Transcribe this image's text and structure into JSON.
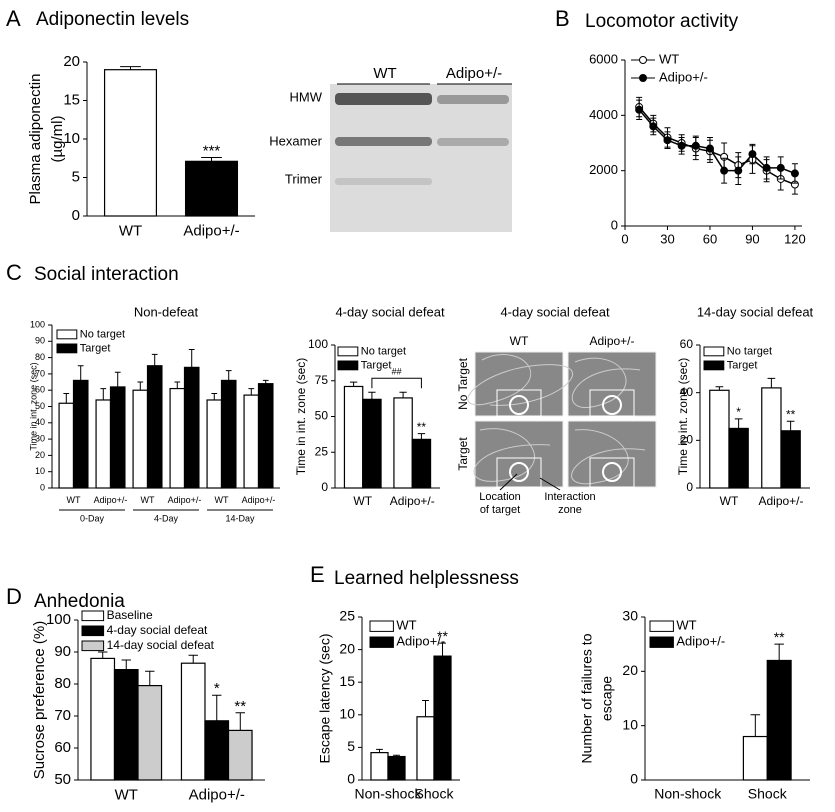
{
  "panels": [
    {
      "letter": "A",
      "title": "Adiponectin levels"
    },
    {
      "letter": "B",
      "title": "Locomotor activity"
    },
    {
      "letter": "C",
      "title": "Social interaction"
    },
    {
      "letter": "D",
      "title": "Anhedonia"
    },
    {
      "letter": "E",
      "title": "Learned helplessness"
    }
  ],
  "blot": {
    "groups": [
      "WT",
      "Adipo+/-"
    ],
    "bands": [
      "HMW",
      "Hexamer",
      "Trimer"
    ]
  },
  "tracks": {
    "title": "4-day social defeat",
    "columns": [
      "WT",
      "Adipo+/-"
    ],
    "rows": [
      "No Target",
      "Target"
    ],
    "location_label": [
      "Location",
      "of target"
    ],
    "zone_label": [
      "Interaction",
      "zone"
    ]
  },
  "chart_data": [
    {
      "type": "bar",
      "y_label": [
        "Plasma adiponectin",
        "(µg/ml)"
      ],
      "categories": [
        "WT",
        "Adipo+/-"
      ],
      "values": [
        19,
        7.1
      ],
      "errors": [
        0.4,
        0.5
      ],
      "colors": [
        "#ffffff",
        "#000000"
      ],
      "ylim": [
        0,
        20
      ],
      "yticks": [
        0,
        5,
        10,
        15,
        20
      ],
      "annotations": [
        {
          "text": "***",
          "index": 1
        }
      ]
    },
    {
      "type": "line",
      "x": [
        10,
        20,
        30,
        40,
        50,
        60,
        70,
        80,
        90,
        100,
        110,
        120
      ],
      "xlim": [
        0,
        125
      ],
      "xticks": [
        0,
        30,
        60,
        90,
        120
      ],
      "ylim": [
        0,
        6000
      ],
      "yticks": [
        0,
        2000,
        4000,
        6000
      ],
      "legend": "upper right",
      "series": [
        {
          "name": "WT",
          "color": "#ffffff",
          "values": [
            4300,
            3700,
            3200,
            3000,
            2800,
            2700,
            2500,
            2200,
            2400,
            2000,
            1700,
            1500
          ],
          "errors": [
            350,
            300,
            350,
            300,
            400,
            400,
            500,
            450,
            500,
            400,
            400,
            350
          ]
        },
        {
          "name": "Adipo+/-",
          "color": "#000000",
          "values": [
            4200,
            3600,
            3100,
            2900,
            2900,
            2800,
            2000,
            2000,
            2600,
            2100,
            2100,
            1900
          ],
          "errors": [
            350,
            300,
            300,
            300,
            350,
            400,
            450,
            500,
            350,
            400,
            400,
            350
          ]
        }
      ]
    },
    {
      "type": "bar",
      "title": "Non-defeat",
      "y_label": [
        "Time in int. zone (sec)"
      ],
      "categories": [
        "WT",
        "Adipo+/-",
        "WT",
        "Adipo+/-",
        "WT",
        "Adipo+/-"
      ],
      "group_labels": [
        "0-Day",
        "4-Day",
        "14-Day"
      ],
      "ylim": [
        0,
        100
      ],
      "yticks": [
        0,
        10,
        20,
        30,
        40,
        50,
        60,
        70,
        80,
        90,
        100
      ],
      "series": [
        {
          "name": "No target",
          "color": "#ffffff",
          "values": [
            52,
            54,
            60,
            61,
            54,
            57
          ],
          "errors": [
            6,
            7,
            5,
            4,
            4,
            4
          ]
        },
        {
          "name": "Target",
          "color": "#000000",
          "values": [
            66,
            62,
            75,
            74,
            66,
            64
          ],
          "errors": [
            9,
            9,
            7,
            11,
            6,
            2
          ]
        }
      ]
    },
    {
      "type": "bar",
      "title": "4-day social defeat",
      "y_label": [
        "Time in int. zone (sec)"
      ],
      "categories": [
        "WT",
        "Adipo+/-"
      ],
      "ylim": [
        0,
        100
      ],
      "yticks": [
        0,
        25,
        50,
        75,
        100
      ],
      "series": [
        {
          "name": "No target",
          "color": "#ffffff",
          "values": [
            71,
            63
          ],
          "errors": [
            3,
            4
          ]
        },
        {
          "name": "Target",
          "color": "#000000",
          "values": [
            62,
            34
          ],
          "errors": [
            5,
            4
          ]
        }
      ],
      "annotations": [
        {
          "text": "**",
          "series": 1,
          "index": 1
        }
      ],
      "brackets": [
        {
          "text": "##",
          "from": {
            "series": 1,
            "index": 0
          },
          "to": {
            "series": 1,
            "index": 1
          }
        }
      ]
    },
    {
      "type": "bar",
      "title": "14-day social defeat",
      "y_label": [
        "Time in int. zone (sec)"
      ],
      "categories": [
        "WT",
        "Adipo+/-"
      ],
      "ylim": [
        0,
        60
      ],
      "yticks": [
        0,
        20,
        40,
        60
      ],
      "series": [
        {
          "name": "No target",
          "color": "#ffffff",
          "values": [
            41,
            42
          ],
          "errors": [
            1.5,
            4
          ]
        },
        {
          "name": "Target",
          "color": "#000000",
          "values": [
            25,
            24
          ],
          "errors": [
            4,
            4
          ]
        }
      ],
      "annotations": [
        {
          "text": "*",
          "series": 1,
          "index": 0
        },
        {
          "text": "**",
          "series": 1,
          "index": 1
        }
      ]
    },
    {
      "type": "bar",
      "y_label": [
        "Sucrose preference (%)"
      ],
      "categories": [
        "WT",
        "Adipo+/-"
      ],
      "ylim": [
        50,
        100
      ],
      "yticks": [
        50,
        60,
        70,
        80,
        90,
        100
      ],
      "series": [
        {
          "name": "Baseline",
          "color": "#ffffff",
          "values": [
            88,
            86.5
          ],
          "errors": [
            2,
            2.5
          ]
        },
        {
          "name": "4-day social defeat",
          "color": "#000000",
          "values": [
            84.5,
            68.5
          ],
          "errors": [
            3,
            8
          ]
        },
        {
          "name": "14-day social defeat",
          "color": "#cccccc",
          "values": [
            79.5,
            65.5
          ],
          "errors": [
            4.5,
            5.5
          ]
        }
      ],
      "annotations": [
        {
          "text": "*",
          "series": 1,
          "index": 1
        },
        {
          "text": "**",
          "series": 2,
          "index": 1
        }
      ]
    },
    {
      "type": "bar",
      "y_label": [
        "Escape latency (sec)"
      ],
      "categories": [
        "Non-shock",
        "Shock"
      ],
      "ylim": [
        0,
        25
      ],
      "yticks": [
        0,
        5,
        10,
        15,
        20,
        25
      ],
      "series": [
        {
          "name": "WT",
          "color": "#ffffff",
          "values": [
            4.2,
            9.7
          ],
          "errors": [
            0.5,
            2.5
          ]
        },
        {
          "name": "Adipo+/-",
          "color": "#000000",
          "values": [
            3.6,
            19
          ],
          "errors": [
            0.2,
            2
          ]
        }
      ],
      "annotations": [
        {
          "text": "**",
          "series": 1,
          "index": 1
        }
      ]
    },
    {
      "type": "bar",
      "y_label": [
        "Number of failures to",
        "escape"
      ],
      "categories": [
        "Non-shock",
        "Shock"
      ],
      "ylim": [
        0,
        30
      ],
      "yticks": [
        0,
        10,
        20,
        30
      ],
      "series": [
        {
          "name": "WT",
          "color": "#ffffff",
          "values": [
            0,
            8
          ],
          "errors": [
            0,
            4
          ]
        },
        {
          "name": "Adipo+/-",
          "color": "#000000",
          "values": [
            0,
            22
          ],
          "errors": [
            0,
            3
          ]
        }
      ],
      "annotations": [
        {
          "text": "**",
          "series": 1,
          "index": 1
        }
      ]
    }
  ]
}
